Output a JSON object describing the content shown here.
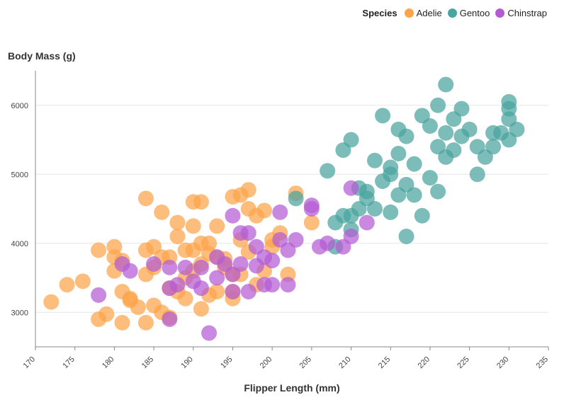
{
  "chart_data": {
    "type": "scatter",
    "xlabel": "Flipper Length (mm)",
    "ylabel": "Body Mass (g)",
    "xlim": [
      170,
      235
    ],
    "ylim": [
      2500,
      6500
    ],
    "xticks": [
      170,
      175,
      180,
      185,
      190,
      195,
      200,
      205,
      210,
      215,
      220,
      225,
      230,
      235
    ],
    "yticks": [
      3000,
      4000,
      5000,
      6000
    ],
    "grid": "horizontal",
    "legend_title": "Species",
    "legend_position": "top-right",
    "series": [
      {
        "name": "Adelie",
        "color": "#fca449",
        "points": [
          [
            172,
            3150
          ],
          [
            174,
            3400
          ],
          [
            176,
            3450
          ],
          [
            178,
            3900
          ],
          [
            178,
            2900
          ],
          [
            179,
            2975
          ],
          [
            180,
            3950
          ],
          [
            180,
            3800
          ],
          [
            180,
            3600
          ],
          [
            181,
            3750
          ],
          [
            181,
            2850
          ],
          [
            181,
            3300
          ],
          [
            182,
            3175
          ],
          [
            182,
            3200
          ],
          [
            183,
            3075
          ],
          [
            184,
            3900
          ],
          [
            184,
            4650
          ],
          [
            184,
            2850
          ],
          [
            184,
            3550
          ],
          [
            185,
            3950
          ],
          [
            185,
            3650
          ],
          [
            185,
            3100
          ],
          [
            186,
            3800
          ],
          [
            186,
            4450
          ],
          [
            186,
            3000
          ],
          [
            187,
            3800
          ],
          [
            187,
            3350
          ],
          [
            187,
            2925
          ],
          [
            188,
            3300
          ],
          [
            188,
            4300
          ],
          [
            188,
            4100
          ],
          [
            189,
            3200
          ],
          [
            189,
            3500
          ],
          [
            189,
            3900
          ],
          [
            190,
            4250
          ],
          [
            190,
            3600
          ],
          [
            190,
            3900
          ],
          [
            190,
            4600
          ],
          [
            191,
            3700
          ],
          [
            191,
            4000
          ],
          [
            191,
            3050
          ],
          [
            191,
            4600
          ],
          [
            192,
            3850
          ],
          [
            192,
            3250
          ],
          [
            192,
            4000
          ],
          [
            193,
            3300
          ],
          [
            193,
            3800
          ],
          [
            193,
            4250
          ],
          [
            194,
            3650
          ],
          [
            194,
            3775
          ],
          [
            195,
            3200
          ],
          [
            195,
            4675
          ],
          [
            195,
            3550
          ],
          [
            195,
            3300
          ],
          [
            196,
            4700
          ],
          [
            196,
            4050
          ],
          [
            196,
            3550
          ],
          [
            197,
            4775
          ],
          [
            197,
            4500
          ],
          [
            197,
            3875
          ],
          [
            198,
            4400
          ],
          [
            198,
            3400
          ],
          [
            199,
            4475
          ],
          [
            199,
            3600
          ],
          [
            200,
            3950
          ],
          [
            200,
            4050
          ],
          [
            201,
            4150
          ],
          [
            202,
            3550
          ],
          [
            203,
            4725
          ],
          [
            205,
            4300
          ]
        ]
      },
      {
        "name": "Gentoo",
        "color": "#4aa49f",
        "points": [
          [
            203,
            4650
          ],
          [
            207,
            5050
          ],
          [
            208,
            4300
          ],
          [
            208,
            3950
          ],
          [
            209,
            5350
          ],
          [
            209,
            4400
          ],
          [
            210,
            4400
          ],
          [
            210,
            4200
          ],
          [
            210,
            5500
          ],
          [
            211,
            4500
          ],
          [
            211,
            4800
          ],
          [
            212,
            4650
          ],
          [
            212,
            4750
          ],
          [
            213,
            5200
          ],
          [
            213,
            4500
          ],
          [
            214,
            5850
          ],
          [
            214,
            4900
          ],
          [
            215,
            4450
          ],
          [
            215,
            5100
          ],
          [
            215,
            5000
          ],
          [
            216,
            5650
          ],
          [
            216,
            4700
          ],
          [
            216,
            5300
          ],
          [
            217,
            4850
          ],
          [
            217,
            4100
          ],
          [
            217,
            5550
          ],
          [
            218,
            4700
          ],
          [
            218,
            5150
          ],
          [
            219,
            4400
          ],
          [
            219,
            5850
          ],
          [
            220,
            5700
          ],
          [
            220,
            4950
          ],
          [
            221,
            5400
          ],
          [
            221,
            4750
          ],
          [
            221,
            6000
          ],
          [
            222,
            5250
          ],
          [
            222,
            5600
          ],
          [
            222,
            6300
          ],
          [
            223,
            5350
          ],
          [
            223,
            5800
          ],
          [
            224,
            5950
          ],
          [
            224,
            5550
          ],
          [
            225,
            5650
          ],
          [
            226,
            5000
          ],
          [
            226,
            5400
          ],
          [
            227,
            5250
          ],
          [
            228,
            5600
          ],
          [
            228,
            5400
          ],
          [
            229,
            5600
          ],
          [
            230,
            5950
          ],
          [
            230,
            5800
          ],
          [
            230,
            6050
          ],
          [
            230,
            5500
          ],
          [
            231,
            5650
          ]
        ]
      },
      {
        "name": "Chinstrap",
        "color": "#b45bd4",
        "points": [
          [
            178,
            3250
          ],
          [
            181,
            3700
          ],
          [
            182,
            3600
          ],
          [
            185,
            3700
          ],
          [
            187,
            3350
          ],
          [
            187,
            2900
          ],
          [
            187,
            3650
          ],
          [
            188,
            3400
          ],
          [
            189,
            3650
          ],
          [
            190,
            3450
          ],
          [
            191,
            3350
          ],
          [
            191,
            3650
          ],
          [
            192,
            2700
          ],
          [
            193,
            3500
          ],
          [
            193,
            3800
          ],
          [
            194,
            3700
          ],
          [
            195,
            3300
          ],
          [
            195,
            4400
          ],
          [
            195,
            3550
          ],
          [
            196,
            3700
          ],
          [
            196,
            4150
          ],
          [
            197,
            3300
          ],
          [
            197,
            4150
          ],
          [
            198,
            3675
          ],
          [
            198,
            3950
          ],
          [
            199,
            3400
          ],
          [
            199,
            3800
          ],
          [
            200,
            3750
          ],
          [
            200,
            3400
          ],
          [
            201,
            4450
          ],
          [
            201,
            4050
          ],
          [
            202,
            3900
          ],
          [
            202,
            3400
          ],
          [
            203,
            4050
          ],
          [
            205,
            4550
          ],
          [
            205,
            4500
          ],
          [
            206,
            3950
          ],
          [
            207,
            4000
          ],
          [
            209,
            3950
          ],
          [
            210,
            4100
          ],
          [
            210,
            4800
          ],
          [
            212,
            4300
          ]
        ]
      }
    ]
  }
}
